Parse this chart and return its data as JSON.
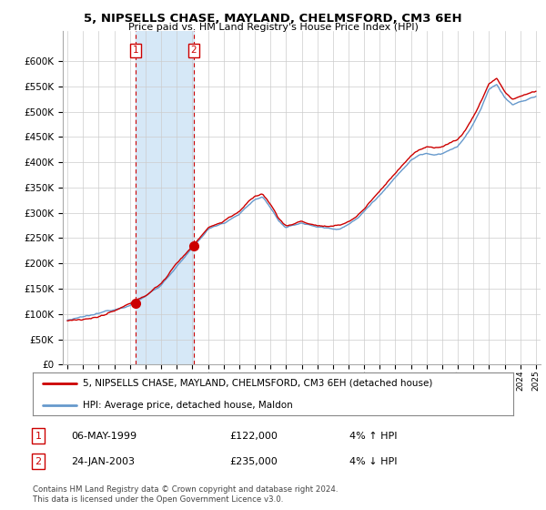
{
  "title": "5, NIPSELLS CHASE, MAYLAND, CHELMSFORD, CM3 6EH",
  "subtitle": "Price paid vs. HM Land Registry's House Price Index (HPI)",
  "legend_line1": "5, NIPSELLS CHASE, MAYLAND, CHELMSFORD, CM3 6EH (detached house)",
  "legend_line2": "HPI: Average price, detached house, Maldon",
  "transaction1_date": "06-MAY-1999",
  "transaction1_price": "£122,000",
  "transaction1_hpi": "4% ↑ HPI",
  "transaction2_date": "24-JAN-2003",
  "transaction2_price": "£235,000",
  "transaction2_hpi": "4% ↓ HPI",
  "footer": "Contains HM Land Registry data © Crown copyright and database right 2024.\nThis data is licensed under the Open Government Licence v3.0.",
  "hpi_color": "#6699cc",
  "hpi_shade_color": "#d6e8f7",
  "price_color": "#cc0000",
  "marker1_year": 1999.35,
  "marker1_value": 122000,
  "marker2_year": 2003.07,
  "marker2_value": 235000,
  "ylim_min": 0,
  "ylim_max": 660000,
  "background_color": "#ffffff",
  "plot_bg_color": "#ffffff",
  "grid_color": "#cccccc"
}
